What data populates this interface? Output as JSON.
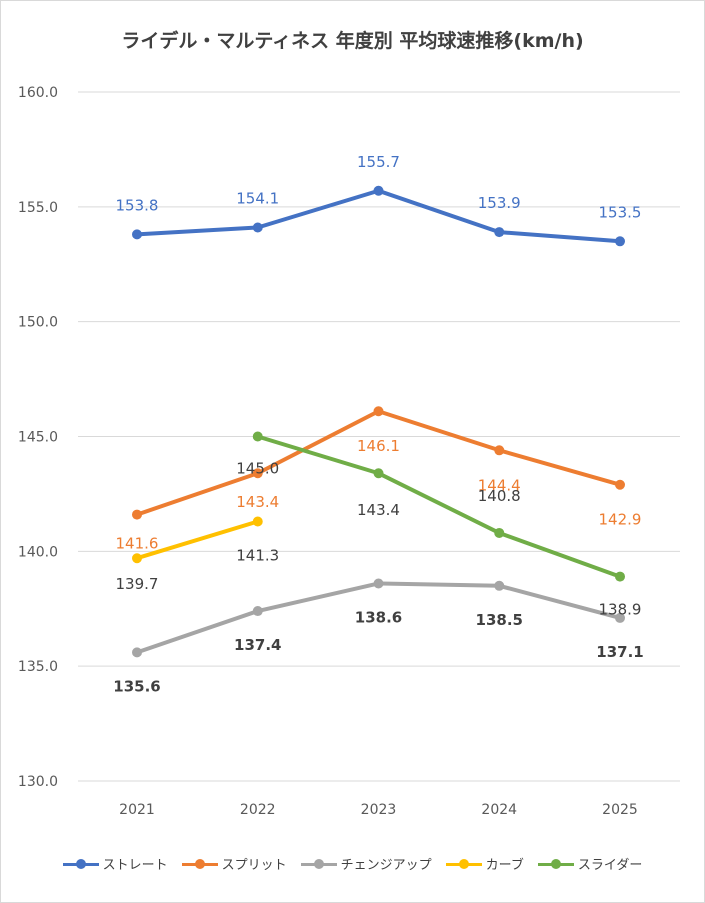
{
  "chart_data": {
    "type": "line",
    "title": "ライデル・マルティネス 年度別 平均球速推移(km/h)",
    "categories": [
      "2021",
      "2022",
      "2023",
      "2024",
      "2025"
    ],
    "y_ticks": [
      "130.0",
      "135.0",
      "140.0",
      "145.0",
      "150.0",
      "155.0",
      "160.0"
    ],
    "ylim": [
      130,
      160
    ],
    "xlabel": "",
    "ylabel": "",
    "grid": true,
    "legend_position": "bottom",
    "series": [
      {
        "name": "ストレート",
        "color": "#4472c4",
        "values": [
          153.8,
          154.1,
          155.7,
          153.9,
          153.5
        ],
        "labels": [
          "153.8",
          "154.1",
          "155.7",
          "153.9",
          "153.5"
        ],
        "label_color": "#4472c4",
        "label_bold": false
      },
      {
        "name": "スプリット",
        "color": "#ed7d31",
        "values": [
          141.6,
          143.4,
          146.1,
          144.4,
          142.9
        ],
        "labels": [
          "141.6",
          "143.4",
          "146.1",
          "144.4",
          "142.9"
        ],
        "label_color": "#ed7d31",
        "label_bold": false
      },
      {
        "name": "チェンジアップ",
        "color": "#a5a5a5",
        "values": [
          135.6,
          137.4,
          138.6,
          138.5,
          137.1
        ],
        "labels": [
          "135.6",
          "137.4",
          "138.6",
          "138.5",
          "137.1"
        ],
        "label_color": "#404040",
        "label_bold": true
      },
      {
        "name": "カーブ",
        "color": "#ffc000",
        "values": [
          139.7,
          141.3,
          null,
          null,
          null
        ],
        "labels": [
          "139.7",
          "141.3",
          null,
          null,
          null
        ],
        "label_color": "#404040",
        "label_bold": false
      },
      {
        "name": "スライダー",
        "color": "#70ad47",
        "values": [
          null,
          145.0,
          143.4,
          140.8,
          138.9
        ],
        "labels": [
          null,
          "145.0",
          "143.4",
          "140.8",
          "138.9"
        ],
        "label_color": "#404040",
        "label_bold": false
      }
    ]
  }
}
